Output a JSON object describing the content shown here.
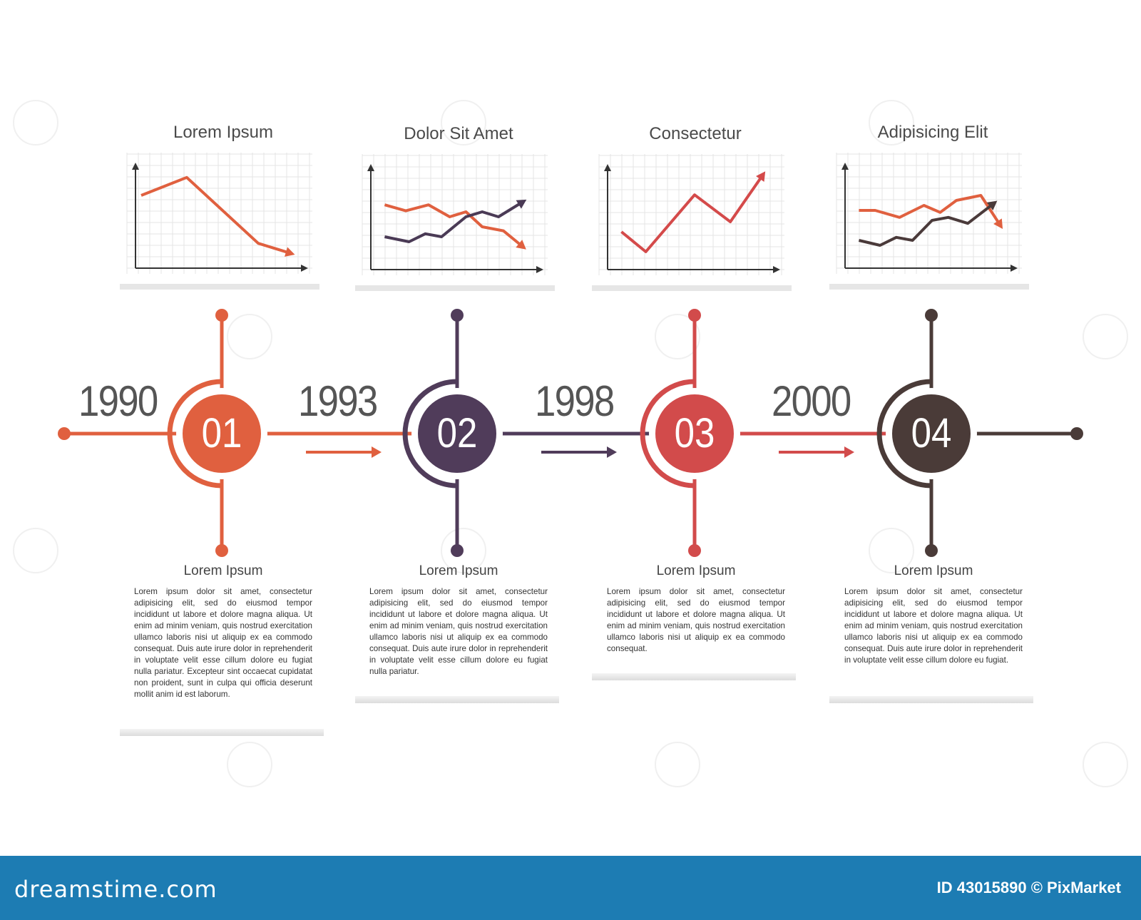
{
  "charts": [
    {
      "title": "Lorem Ipsum",
      "series": [
        {
          "color": "#e0603f",
          "points": [
            [
              0,
              0.7
            ],
            [
              0.28,
              0.88
            ],
            [
              0.72,
              0.22
            ],
            [
              0.92,
              0.12
            ]
          ]
        }
      ]
    },
    {
      "title": "Dolor Sit Amet",
      "series": [
        {
          "color": "#e0603f",
          "points": [
            [
              0.05,
              0.62
            ],
            [
              0.18,
              0.56
            ],
            [
              0.32,
              0.62
            ],
            [
              0.45,
              0.5
            ],
            [
              0.55,
              0.55
            ],
            [
              0.65,
              0.4
            ],
            [
              0.78,
              0.36
            ],
            [
              0.9,
              0.2
            ]
          ]
        },
        {
          "color": "#4a3a55",
          "points": [
            [
              0.05,
              0.3
            ],
            [
              0.2,
              0.25
            ],
            [
              0.3,
              0.33
            ],
            [
              0.4,
              0.3
            ],
            [
              0.55,
              0.5
            ],
            [
              0.65,
              0.55
            ],
            [
              0.75,
              0.5
            ],
            [
              0.9,
              0.65
            ]
          ]
        }
      ]
    },
    {
      "title": "Consectetur",
      "series": [
        {
          "color": "#d44a4a",
          "points": [
            [
              0.05,
              0.35
            ],
            [
              0.2,
              0.15
            ],
            [
              0.5,
              0.72
            ],
            [
              0.72,
              0.45
            ],
            [
              0.92,
              0.92
            ]
          ]
        }
      ]
    },
    {
      "title": "Adipisicing Elit",
      "series": [
        {
          "color": "#e0603f",
          "points": [
            [
              0.05,
              0.55
            ],
            [
              0.15,
              0.55
            ],
            [
              0.3,
              0.48
            ],
            [
              0.45,
              0.6
            ],
            [
              0.55,
              0.53
            ],
            [
              0.65,
              0.65
            ],
            [
              0.8,
              0.7
            ],
            [
              0.92,
              0.4
            ]
          ]
        },
        {
          "color": "#4a3a3a",
          "points": [
            [
              0.05,
              0.25
            ],
            [
              0.18,
              0.2
            ],
            [
              0.28,
              0.28
            ],
            [
              0.38,
              0.25
            ],
            [
              0.5,
              0.45
            ],
            [
              0.6,
              0.48
            ],
            [
              0.72,
              0.42
            ],
            [
              0.88,
              0.62
            ]
          ]
        }
      ]
    }
  ],
  "timeline": [
    {
      "year": "1990",
      "number": "01",
      "color": "#e0603f"
    },
    {
      "year": "1993",
      "number": "02",
      "color": "#503c5a"
    },
    {
      "year": "1998",
      "number": "03",
      "color": "#d24b4b"
    },
    {
      "year": "2000",
      "number": "04",
      "color": "#4a3b38"
    }
  ],
  "descriptions": [
    {
      "title": "Lorem Ipsum",
      "text": "Lorem ipsum dolor sit amet, consectetur adipisicing elit, sed do eiusmod tempor incididunt ut labore et dolore magna aliqua. Ut enim ad minim veniam, quis nostrud exercitation ullamco laboris nisi ut aliquip ex ea commodo consequat. Duis aute irure dolor in reprehenderit in voluptate velit esse cillum dolore eu fugiat nulla pariatur. Excepteur sint occaecat cupidatat non proident, sunt in culpa qui officia deserunt mollit anim id est laborum."
    },
    {
      "title": "Lorem Ipsum",
      "text": "Lorem ipsum dolor sit amet, consectetur adipisicing elit, sed do eiusmod tempor incididunt ut labore et dolore magna aliqua. Ut enim ad minim veniam, quis nostrud exercitation ullamco laboris nisi ut aliquip ex ea commodo consequat. Duis aute irure dolor in reprehenderit in voluptate velit esse cillum dolore eu fugiat nulla pariatur."
    },
    {
      "title": "Lorem Ipsum",
      "text": "Lorem ipsum dolor sit amet, consectetur adipisicing elit, sed do eiusmod tempor incididunt ut labore et dolore magna aliqua. Ut enim ad minim veniam, quis nostrud exercitation ullamco laboris nisi ut aliquip ex ea commodo consequat."
    },
    {
      "title": "Lorem Ipsum",
      "text": "Lorem ipsum dolor sit amet, consectetur adipisicing elit, sed do eiusmod tempor incididunt ut labore et dolore magna aliqua. Ut enim ad minim veniam, quis nostrud exercitation ullamco laboris nisi ut aliquip ex ea commodo consequat. Duis aute irure dolor in reprehenderit in voluptate velit esse cillum dolore eu fugiat."
    }
  ],
  "footer": {
    "logo": "dreamstime.com",
    "id_text": "ID 43015890 © PixMarket"
  }
}
